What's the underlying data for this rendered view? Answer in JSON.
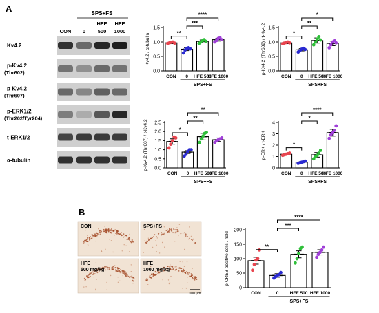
{
  "panels": {
    "A": "A",
    "B": "B"
  },
  "blot": {
    "group_header": "SPS+FS",
    "columns": [
      "CON",
      "0",
      "HFE\n500",
      "HFE\n1000"
    ],
    "rows": [
      {
        "label": [
          "Kv4.2"
        ],
        "bands": [
          0.85,
          0.55,
          0.9,
          0.95
        ]
      },
      {
        "label": [
          "p-Kv4.2",
          "(Thr602)"
        ],
        "bands": [
          0.5,
          0.35,
          0.55,
          0.5
        ]
      },
      {
        "label": [
          "p-Kv4.2",
          "(Thr607)"
        ],
        "bands": [
          0.55,
          0.4,
          0.6,
          0.55
        ]
      },
      {
        "label": [
          "p-ERK1/2",
          "(Thr202/Tyr204)"
        ],
        "bands": [
          0.45,
          0.2,
          0.65,
          0.9
        ]
      },
      {
        "label": [
          "t-ERK1/2"
        ],
        "bands": [
          0.75,
          0.8,
          0.8,
          0.8
        ]
      },
      {
        "label": [
          "α-tubulin"
        ],
        "bands": [
          0.85,
          0.85,
          0.85,
          0.85
        ]
      }
    ]
  },
  "images": {
    "tiles": [
      "CON",
      "SPS+FS",
      "HFE\n500 mg/kg",
      "HFE\n1000 mg/kg"
    ],
    "scalebar": "100 μm"
  },
  "chart_data": [
    {
      "type": "bar",
      "ylabel": "Kv4.2 / α-tubulin",
      "categories": [
        "CON",
        "0",
        "HFE 500",
        "HFE 1000"
      ],
      "group_label": "SPS+FS",
      "values": [
        0.97,
        0.75,
        1.02,
        1.08
      ],
      "errors": [
        0.03,
        0.05,
        0.05,
        0.05
      ],
      "points": [
        [
          0.95,
          0.97,
          0.99,
          1.0,
          0.96
        ],
        [
          0.62,
          0.72,
          0.78,
          0.8,
          0.76
        ],
        [
          0.95,
          1.0,
          1.05,
          1.08,
          1.02
        ],
        [
          1.0,
          1.05,
          1.12,
          1.15,
          1.08
        ]
      ],
      "ylim": [
        0.0,
        1.5
      ],
      "yticks": [
        "0.0",
        "0.5",
        "1.0",
        "1.5"
      ],
      "colors": [
        "#e8454f",
        "#2a2ad1",
        "#2fbf3a",
        "#a040d8"
      ],
      "significance": [
        {
          "from": 0,
          "to": 1,
          "label": "**"
        },
        {
          "from": 1,
          "to": 2,
          "label": "***"
        },
        {
          "from": 1,
          "to": 3,
          "label": "****"
        }
      ]
    },
    {
      "type": "bar",
      "ylabel": "p-Kv4.2 (Thr602) / t-Kv4.2",
      "categories": [
        "CON",
        "0",
        "HFE 500",
        "HFE 1000"
      ],
      "group_label": "SPS+FS",
      "values": [
        0.97,
        0.73,
        1.05,
        0.95
      ],
      "errors": [
        0.03,
        0.04,
        0.09,
        0.08
      ],
      "points": [
        [
          0.94,
          0.96,
          0.98,
          1.0,
          0.97
        ],
        [
          0.65,
          0.7,
          0.75,
          0.78,
          0.74
        ],
        [
          0.9,
          1.0,
          1.1,
          1.18,
          1.07
        ],
        [
          0.8,
          0.9,
          1.0,
          1.05,
          0.97
        ]
      ],
      "ylim": [
        0.0,
        1.5
      ],
      "yticks": [
        "0.0",
        "0.5",
        "1.0",
        "1.5"
      ],
      "colors": [
        "#e8454f",
        "#2a2ad1",
        "#2fbf3a",
        "#a040d8"
      ],
      "significance": [
        {
          "from": 0,
          "to": 1,
          "label": "*"
        },
        {
          "from": 1,
          "to": 2,
          "label": "**"
        },
        {
          "from": 1,
          "to": 3,
          "label": "*"
        }
      ]
    },
    {
      "type": "bar",
      "ylabel": "p-Kv4.2 (Thr607) / t-Kv4.2",
      "categories": [
        "CON",
        "0",
        "HFE 500",
        "HFE 1000"
      ],
      "group_label": "SPS+FS",
      "values": [
        1.45,
        0.87,
        1.72,
        1.55
      ],
      "errors": [
        0.15,
        0.08,
        0.18,
        0.1
      ],
      "points": [
        [
          1.1,
          1.3,
          1.5,
          1.7,
          1.65
        ],
        [
          0.65,
          0.75,
          0.9,
          1.0,
          1.0
        ],
        [
          1.4,
          1.6,
          1.75,
          1.9,
          1.95
        ],
        [
          1.4,
          1.5,
          1.55,
          1.6,
          1.65
        ]
      ],
      "ylim": [
        0.0,
        2.5
      ],
      "yticks": [
        "0.0",
        "0.5",
        "1.0",
        "1.5",
        "2.0",
        "2.5"
      ],
      "colors": [
        "#e8454f",
        "#2a2ad1",
        "#2fbf3a",
        "#a040d8"
      ],
      "significance": [
        {
          "from": 0,
          "to": 1,
          "label": "*"
        },
        {
          "from": 1,
          "to": 2,
          "label": "**"
        },
        {
          "from": 1,
          "to": 3,
          "label": "**"
        }
      ]
    },
    {
      "type": "bar",
      "ylabel": "p-ERK / t-ERK",
      "categories": [
        "CON",
        "0",
        "HFE 500",
        "HFE 1000"
      ],
      "group_label": "SPS+FS",
      "values": [
        1.2,
        0.5,
        1.15,
        3.1
      ],
      "errors": [
        0.05,
        0.05,
        0.2,
        0.3
      ],
      "points": [
        [
          1.1,
          1.15,
          1.2,
          1.25,
          1.3
        ],
        [
          0.4,
          0.45,
          0.5,
          0.55,
          0.6
        ],
        [
          0.8,
          1.0,
          1.1,
          1.3,
          1.55
        ],
        [
          2.6,
          2.9,
          3.1,
          3.3,
          3.7
        ]
      ],
      "ylim": [
        0,
        4
      ],
      "yticks": [
        "0",
        "1",
        "2",
        "3",
        "4"
      ],
      "colors": [
        "#e8454f",
        "#2a2ad1",
        "#2fbf3a",
        "#a040d8"
      ],
      "significance": [
        {
          "from": 0,
          "to": 1,
          "label": "*"
        },
        {
          "from": 1,
          "to": 2,
          "label": "*"
        },
        {
          "from": 1,
          "to": 3,
          "label": "****"
        }
      ]
    },
    {
      "type": "bar",
      "ylabel": "p-CREB positive cells / field",
      "categories": [
        "CON",
        "0",
        "HFE 500",
        "HFE 1000"
      ],
      "group_label": "SPS+FS",
      "values": [
        93,
        42,
        115,
        122
      ],
      "errors": [
        12,
        6,
        12,
        9
      ],
      "points": [
        [
          60,
          80,
          95,
          100,
          130
        ],
        [
          33,
          38,
          42,
          45,
          52
        ],
        [
          85,
          100,
          118,
          135,
          140
        ],
        [
          105,
          115,
          122,
          130,
          140
        ]
      ],
      "ylim": [
        0,
        200
      ],
      "yticks": [
        "0",
        "50",
        "100",
        "150",
        "200"
      ],
      "colors": [
        "#e8454f",
        "#2a2ad1",
        "#2fbf3a",
        "#a040d8"
      ],
      "significance": [
        {
          "from": 0,
          "to": 1,
          "label": "**"
        },
        {
          "from": 1,
          "to": 2,
          "label": "***"
        },
        {
          "from": 1,
          "to": 3,
          "label": "****"
        }
      ]
    }
  ]
}
